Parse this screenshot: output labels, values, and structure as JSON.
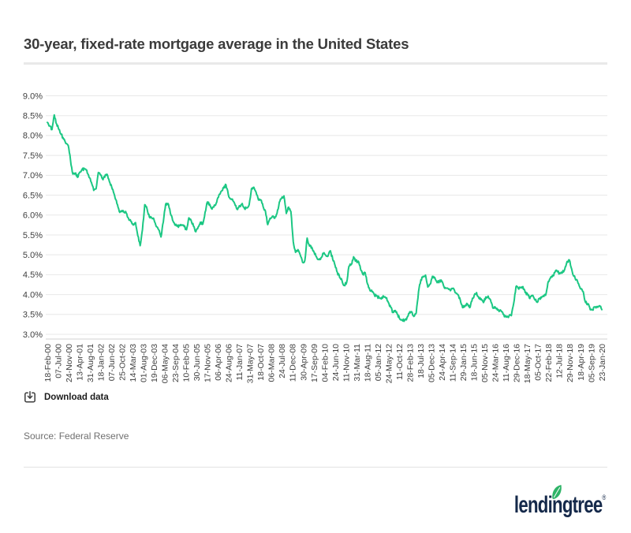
{
  "header": {
    "title": "30-year, fixed-rate mortgage average in the United States"
  },
  "toolbar": {
    "download_label": "Download data"
  },
  "footer": {
    "source": "Source: Federal Reserve",
    "logo_text": "lendingtree",
    "logo_reg": "®"
  },
  "colors": {
    "line": "#1bc783",
    "grid": "#e8e8e8",
    "axis": "#d2d2d2",
    "tick_text": "#3f3f3f",
    "leaf": "#2fb468",
    "navy": "#15294a"
  },
  "chart_data": {
    "type": "line",
    "title": "30-year, fixed-rate mortgage average in the United States",
    "xlabel": "",
    "ylabel": "",
    "ylim": [
      3.0,
      9.0
    ],
    "grid": true,
    "legend": false,
    "y_tick_labels": [
      "9.0%",
      "8.5%",
      "8.0%",
      "7.5%",
      "7.0%",
      "6.5%",
      "6.0%",
      "5.5%",
      "5.0%",
      "4.5%",
      "4.0%",
      "3.5%",
      "3.0%"
    ],
    "y_tick_values": [
      9.0,
      8.5,
      8.0,
      7.5,
      7.0,
      6.5,
      6.0,
      5.5,
      5.0,
      4.5,
      4.0,
      3.5,
      3.0
    ],
    "x_tick_labels": [
      "18-Feb-00",
      "07-Jul-00",
      "24-Nov-00",
      "13-Apr-01",
      "31-Aug-01",
      "18-Jan-02",
      "07-Jun-02",
      "25-Oct-02",
      "14-Mar-03",
      "01-Aug-03",
      "19-Dec-03",
      "06-May-04",
      "23-Sep-04",
      "10-Feb-05",
      "30-Jun-05",
      "17-Nov-05",
      "06-Apr-06",
      "24-Aug-06",
      "11-Jan-07",
      "31-May-07",
      "18-Oct-07",
      "06-Mar-08",
      "24-Jul-08",
      "11-Dec-08",
      "30-Apr-09",
      "17-Sep-09",
      "04-Feb-10",
      "24-Jun-10",
      "11-Nov-10",
      "31-Mar-11",
      "18-Aug-11",
      "05-Jan-12",
      "24-May-12",
      "11-Oct-12",
      "28-Feb-13",
      "18-Jul-13",
      "05-Dec-13",
      "24-Apr-14",
      "11-Sep-14",
      "29-Jan-15",
      "18-Jun-15",
      "05-Nov-15",
      "24-Mar-16",
      "11-Aug-16",
      "29-Dec-16",
      "18-May-17",
      "05-Oct-17",
      "22-Feb-18",
      "12-Jul-18",
      "29-Nov-18",
      "18-Apr-19",
      "05-Sep-19",
      "23-Jan-20"
    ],
    "x_range": {
      "start": "18-Feb-00",
      "end": "23-Jan-20",
      "tick_interval": "every 20 weeks (weekly series)"
    },
    "series": [
      {
        "name": "30-year fixed-rate mortgage average (%)",
        "frequency": "monthly approximations, Feb 2000 - Jan 2020",
        "values": [
          8.33,
          8.24,
          8.15,
          8.52,
          8.29,
          8.15,
          8.03,
          7.91,
          7.8,
          7.75,
          7.38,
          7.03,
          7.05,
          6.95,
          7.08,
          7.15,
          7.16,
          7.13,
          6.95,
          6.82,
          6.62,
          6.66,
          7.07,
          7.0,
          6.89,
          7.01,
          6.99,
          6.81,
          6.65,
          6.49,
          6.29,
          6.09,
          6.11,
          6.07,
          6.05,
          5.92,
          5.84,
          5.75,
          5.81,
          5.48,
          5.23,
          5.63,
          6.26,
          6.15,
          5.95,
          5.93,
          5.88,
          5.71,
          5.63,
          5.45,
          5.83,
          6.27,
          6.29,
          6.06,
          5.87,
          5.75,
          5.72,
          5.73,
          5.75,
          5.71,
          5.63,
          5.93,
          5.86,
          5.72,
          5.58,
          5.7,
          5.82,
          5.77,
          6.07,
          6.33,
          6.27,
          6.15,
          6.25,
          6.32,
          6.51,
          6.6,
          6.68,
          6.76,
          6.52,
          6.4,
          6.36,
          6.24,
          6.14,
          6.22,
          6.29,
          6.16,
          6.18,
          6.26,
          6.66,
          6.7,
          6.57,
          6.38,
          6.38,
          6.21,
          6.1,
          5.76,
          5.92,
          5.97,
          5.92,
          6.04,
          6.32,
          6.43,
          6.48,
          6.04,
          6.2,
          6.09,
          5.33,
          5.06,
          5.13,
          5.0,
          4.81,
          4.86,
          5.42,
          5.22,
          5.19,
          5.06,
          4.95,
          4.88,
          4.93,
          5.03,
          4.99,
          4.97,
          5.1,
          4.89,
          4.74,
          4.56,
          4.43,
          4.35,
          4.23,
          4.3,
          4.71,
          4.76,
          4.95,
          4.84,
          4.84,
          4.64,
          4.51,
          4.55,
          4.27,
          4.11,
          4.07,
          3.99,
          3.96,
          3.92,
          3.89,
          3.95,
          3.91,
          3.8,
          3.68,
          3.55,
          3.6,
          3.5,
          3.38,
          3.35,
          3.35,
          3.41,
          3.53,
          3.57,
          3.45,
          3.54,
          4.07,
          4.37,
          4.46,
          4.49,
          4.19,
          4.26,
          4.46,
          4.43,
          4.3,
          4.34,
          4.34,
          4.19,
          4.16,
          4.13,
          4.12,
          4.16,
          4.04,
          4.0,
          3.86,
          3.67,
          3.71,
          3.77,
          3.67,
          3.84,
          3.98,
          4.05,
          3.91,
          3.89,
          3.8,
          3.94,
          3.96,
          3.87,
          3.66,
          3.69,
          3.61,
          3.6,
          3.57,
          3.44,
          3.44,
          3.46,
          3.47,
          3.77,
          4.2,
          4.15,
          4.17,
          4.2,
          4.05,
          4.01,
          3.9,
          3.97,
          3.88,
          3.81,
          3.9,
          3.92,
          3.95,
          4.03,
          4.33,
          4.44,
          4.47,
          4.59,
          4.57,
          4.53,
          4.55,
          4.63,
          4.83,
          4.87,
          4.64,
          4.46,
          4.37,
          4.27,
          4.14,
          4.07,
          3.8,
          3.77,
          3.62,
          3.61,
          3.69,
          3.7,
          3.72,
          3.62
        ]
      }
    ],
    "appearance": {
      "weekly_noise": 0.035,
      "steps_per_month": 4
    }
  }
}
